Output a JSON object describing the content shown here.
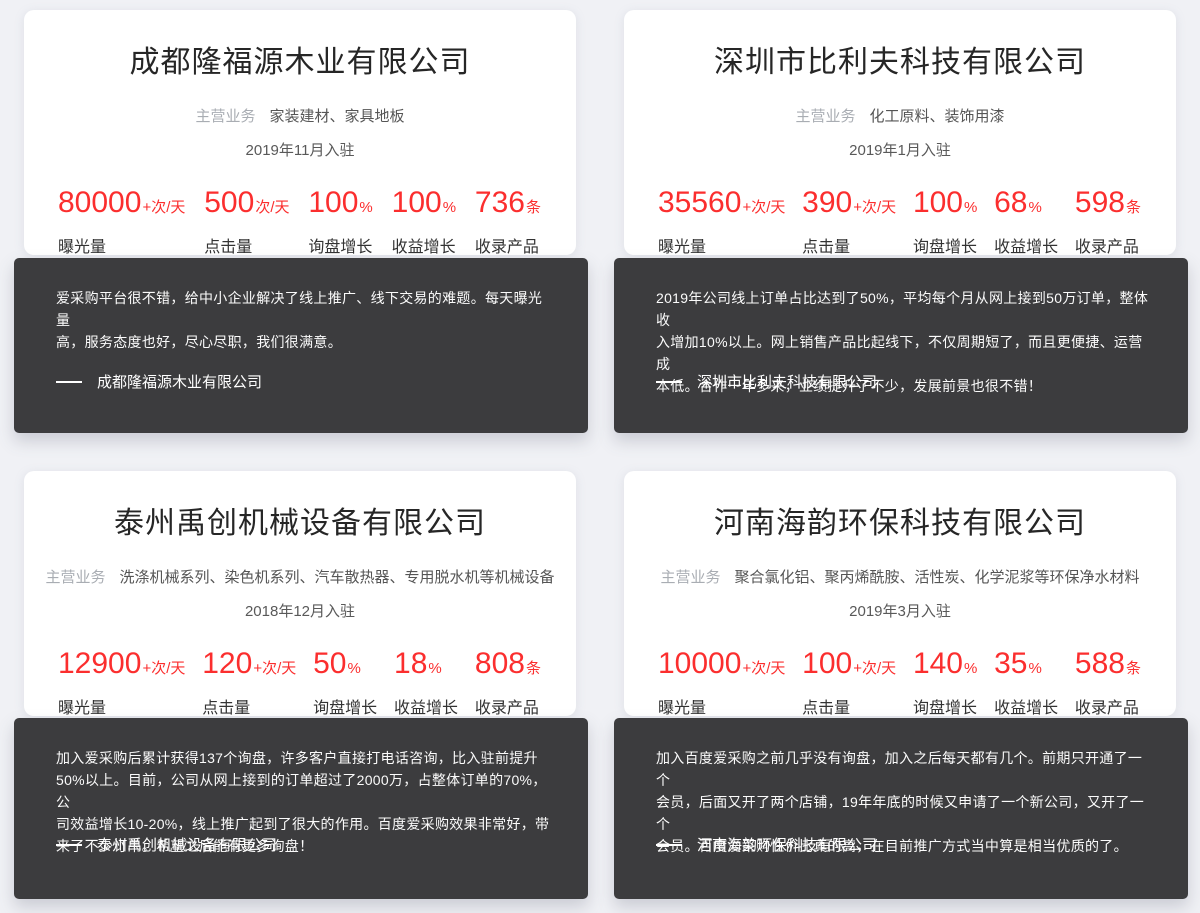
{
  "labels": {
    "main_business": "主营业务"
  },
  "colors": {
    "accent_red": "#fb2e2e",
    "dark_panel": "#3c3c3e",
    "page_bg": "#f0f1f5",
    "card_bg": "#ffffff"
  },
  "cards": [
    {
      "name": "成都隆福源木业有限公司",
      "business": "家装建材、家具地板",
      "join_date": "2019年11月入驻",
      "stats": [
        {
          "value": "80000",
          "suffix": "+次/天",
          "label": "曝光量"
        },
        {
          "value": "500",
          "suffix": "次/天",
          "label": "点击量"
        },
        {
          "value": "100",
          "suffix": "%",
          "label": "询盘增长"
        },
        {
          "value": "100",
          "suffix": "%",
          "label": "收益增长"
        },
        {
          "value": "736",
          "suffix": "条",
          "label": "收录产品"
        }
      ],
      "quote": "爱采购平台很不错，给中小企业解决了线上推广、线下交易的难题。每天曝光量\n高，服务态度也好，尽心尽职，我们很满意。",
      "attribution": "成都隆福源木业有限公司"
    },
    {
      "name": "深圳市比利夫科技有限公司",
      "business": "化工原料、装饰用漆",
      "join_date": "2019年1月入驻",
      "stats": [
        {
          "value": "35560",
          "suffix": "+次/天",
          "label": "曝光量"
        },
        {
          "value": "390",
          "suffix": "+次/天",
          "label": "点击量"
        },
        {
          "value": "100",
          "suffix": "%",
          "label": "询盘增长"
        },
        {
          "value": "68",
          "suffix": "%",
          "label": "收益增长"
        },
        {
          "value": "598",
          "suffix": "条",
          "label": "收录产品"
        }
      ],
      "quote": "2019年公司线上订单占比达到了50%，平均每个月从网上接到50万订单，整体收\n入增加10%以上。网上销售产品比起线下，不仅周期短了，而且更便捷、运营成\n本低。合作一年多来，业绩提升了不少，发展前景也很不错！",
      "attribution": "深圳市比利夫科技有限公司"
    },
    {
      "name": "泰州禹创机械设备有限公司",
      "business": "洗涤机械系列、染色机系列、汽车散热器、专用脱水机等机械设备",
      "join_date": "2018年12月入驻",
      "stats": [
        {
          "value": "12900",
          "suffix": "+次/天",
          "label": "曝光量"
        },
        {
          "value": "120",
          "suffix": "+次/天",
          "label": "点击量"
        },
        {
          "value": "50",
          "suffix": "%",
          "label": "询盘增长"
        },
        {
          "value": "18",
          "suffix": "%",
          "label": "收益增长"
        },
        {
          "value": "808",
          "suffix": "条",
          "label": "收录产品"
        }
      ],
      "quote": "加入爱采购后累计获得137个询盘，许多客户直接打电话咨询，比入驻前提升\n50%以上。目前，公司从网上接到的订单超过了2000万，占整体订单的70%，公\n司效益增长10-20%，线上推广起到了很大的作用。百度爱采购效果非常好，带\n来了不少订单。希望之后能有更多询盘！",
      "attribution": "泰州禹创机械设备有限公司"
    },
    {
      "name": "河南海韵环保科技有限公司",
      "business": "聚合氯化铝、聚丙烯酰胺、活性炭、化学泥浆等环保净水材料",
      "join_date": "2019年3月入驻",
      "stats": [
        {
          "value": "10000",
          "suffix": "+次/天",
          "label": "曝光量"
        },
        {
          "value": "100",
          "suffix": "+次/天",
          "label": "点击量"
        },
        {
          "value": "140",
          "suffix": "%",
          "label": "询盘增长"
        },
        {
          "value": "35",
          "suffix": "%",
          "label": "收益增长"
        },
        {
          "value": "588",
          "suffix": "条",
          "label": "收录产品"
        }
      ],
      "quote": "加入百度爱采购之前几乎没有询盘，加入之后每天都有几个。前期只开通了一个\n会员，后面又开了两个店铺，19年年底的时候又申请了一个新公司，又开了一个\n会员。百度爱采购性价比真的高，在目前推广方式当中算是相当优质的了。",
      "attribution": "河南海韵环保科技有限公司"
    }
  ]
}
